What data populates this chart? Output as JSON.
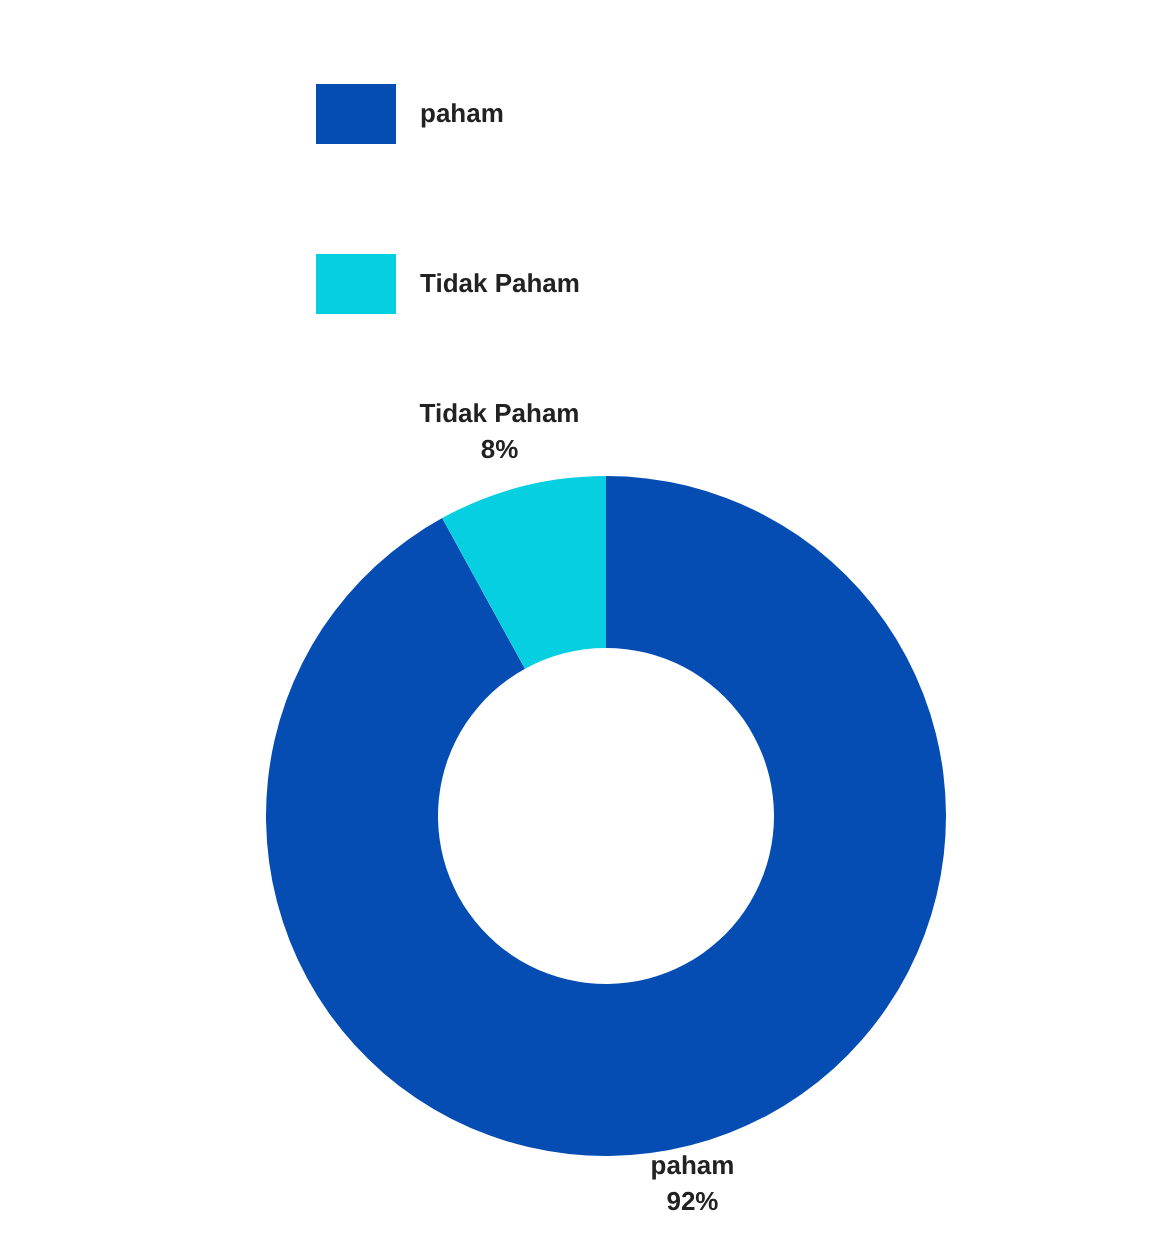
{
  "chart_data": {
    "type": "donut",
    "categories": [
      "paham",
      "Tidak Paham"
    ],
    "values": [
      92,
      8
    ],
    "colors": [
      "#064db3",
      "#05cfe0"
    ],
    "legend": "top",
    "value_labels": [
      "92%",
      "8%"
    ]
  }
}
